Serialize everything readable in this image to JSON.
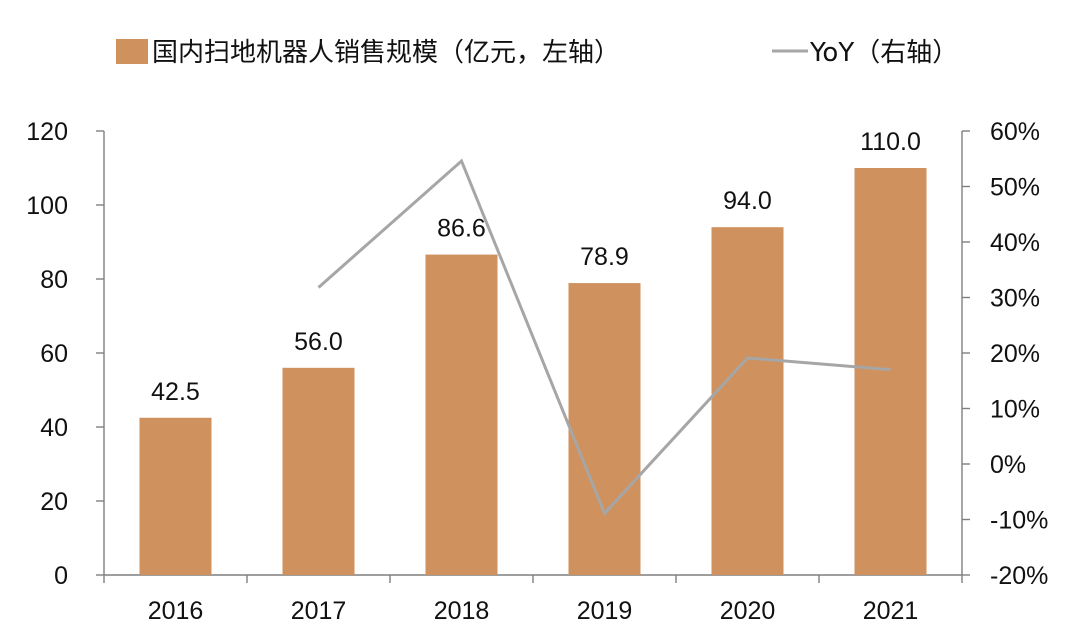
{
  "chart_data": {
    "type": "bar+line",
    "categories": [
      "2016",
      "2017",
      "2018",
      "2019",
      "2020",
      "2021"
    ],
    "series": [
      {
        "name": "国内扫地机器人销售规模（亿元，左轴）",
        "type": "bar",
        "axis": "left",
        "values": [
          42.5,
          56.0,
          86.6,
          78.9,
          94.0,
          110.0
        ],
        "data_labels": [
          "42.5",
          "56.0",
          "86.6",
          "78.9",
          "94.0",
          "110.0"
        ],
        "color": "#cf915e"
      },
      {
        "name": "YoY（右轴）",
        "type": "line",
        "axis": "right",
        "values": [
          null,
          31.8,
          54.6,
          -8.9,
          19.1,
          17.0
        ],
        "color": "#a6a6a6"
      }
    ],
    "left_axis": {
      "ylim": [
        0,
        120
      ],
      "ticks": [
        0,
        20,
        40,
        60,
        80,
        100,
        120
      ],
      "tick_labels": [
        "0",
        "20",
        "40",
        "60",
        "80",
        "100",
        "120"
      ]
    },
    "right_axis": {
      "ylim": [
        -20,
        60
      ],
      "ticks": [
        -20,
        -10,
        0,
        10,
        20,
        30,
        40,
        50,
        60
      ],
      "tick_labels": [
        "-20%",
        "-10%",
        "0%",
        "10%",
        "20%",
        "30%",
        "40%",
        "50%",
        "60%"
      ]
    },
    "legend": {
      "position": "top",
      "items": [
        "国内扫地机器人销售规模（亿元，左轴）",
        "YoY（右轴）"
      ]
    },
    "grid": false
  }
}
